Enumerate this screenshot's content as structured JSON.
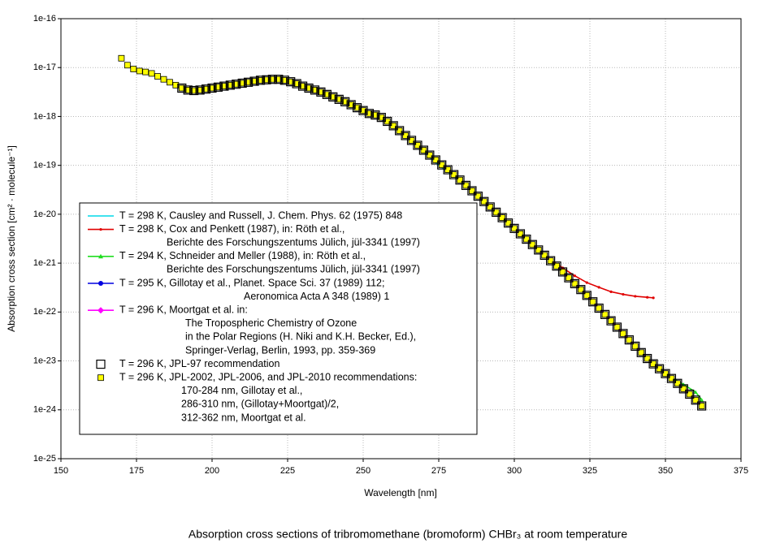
{
  "chart_data": {
    "type": "line",
    "caption": "Absorption cross sections of tribromomethane (bromoform) CHBr₃ at room temperature",
    "xlabel": "Wavelength [nm]",
    "ylabel": "Absorption cross section [cm² · molecule⁻¹]",
    "xlim": [
      150,
      375
    ],
    "xticks": [
      150,
      175,
      200,
      225,
      250,
      275,
      300,
      325,
      350,
      375
    ],
    "ylim": [
      1e-25,
      1e-16
    ],
    "log_y": true,
    "yticks": [
      {
        "value": 1e-25,
        "label": "1e-25"
      },
      {
        "value": 1e-24,
        "label": "1e-24"
      },
      {
        "value": 1e-23,
        "label": "1e-23"
      },
      {
        "value": 1e-22,
        "label": "1e-22"
      },
      {
        "value": 1e-21,
        "label": "1e-21"
      },
      {
        "value": 1e-20,
        "label": "1e-20"
      },
      {
        "value": 1e-19,
        "label": "1e-19"
      },
      {
        "value": 1e-18,
        "label": "1e-18"
      },
      {
        "value": 1e-17,
        "label": "1e-17"
      },
      {
        "value": 1e-16,
        "label": "1e-16"
      }
    ],
    "grid": true,
    "legend": "lower left",
    "series": [
      {
        "name": [
          "T = 298 K, Causley and Russell, J. Chem. Phys. 62 (1975) 848"
        ],
        "color": "#00d8e8",
        "marker": "none",
        "line": true,
        "x": [
          180,
          185,
          190,
          195,
          200,
          205,
          210,
          215,
          220,
          225,
          230,
          235,
          240,
          245,
          250,
          255,
          260,
          265,
          270,
          275,
          280,
          285,
          290,
          295,
          300
        ],
        "values": [
          7.6e-18,
          5.5e-18,
          4e-18,
          3.6e-18,
          3.9e-18,
          4.3e-18,
          4.8e-18,
          5.3e-18,
          5.7e-18,
          5.3e-18,
          4.2e-18,
          3.3e-18,
          2.5e-18,
          1.9e-18,
          1.3e-18,
          1e-18,
          6.5e-19,
          3.6e-19,
          1.9e-19,
          1e-19,
          6e-20,
          3.4e-20,
          1.8e-20,
          9.5e-21,
          5.1e-21
        ]
      },
      {
        "name": [
          "T = 298 K, Cox and Penkett (1987), in: Röth et al.,",
          "Berichte des Forschungszentums Jülich, jül-3341 (1997)"
        ],
        "color": "#e00000",
        "marker": "dot",
        "line": true,
        "x": [
          204,
          208,
          212,
          216,
          220,
          224,
          228,
          232,
          236,
          240,
          244,
          248,
          252,
          256,
          260,
          264,
          268,
          272,
          276,
          280,
          284,
          288,
          292,
          296,
          300,
          304,
          308,
          312,
          316,
          320,
          324,
          328,
          332,
          336,
          340,
          344,
          346
        ],
        "values": [
          4.2e-18,
          4.6e-18,
          5e-18,
          5.5e-18,
          5.75e-18,
          5.5e-18,
          4.7e-18,
          3.8e-18,
          3.2e-18,
          2.5e-18,
          2e-18,
          1.5e-18,
          1.15e-18,
          9.5e-19,
          6.5e-19,
          4.1e-19,
          2.6e-19,
          1.6e-19,
          1e-19,
          6.5e-20,
          3.9e-20,
          2.3e-20,
          1.4e-20,
          8.5e-21,
          5.1e-21,
          3.1e-21,
          1.9e-21,
          1.15e-21,
          8e-22,
          5.5e-22,
          4e-22,
          3.2e-22,
          2.6e-22,
          2.3e-22,
          2.1e-22,
          2e-22,
          1.95e-22
        ]
      },
      {
        "name": [
          "T = 294 K, Schneider and Meller (1988), in: Röth et al.,",
          "Berichte des Forschungszentums Jülich, jül-3341 (1997)"
        ],
        "color": "#22dd22",
        "marker": "triangle",
        "line": true,
        "x": [
          240,
          244,
          248,
          252,
          256,
          260,
          264,
          268,
          272,
          276,
          280,
          284,
          288,
          292,
          296,
          300,
          304,
          308,
          312,
          316,
          320,
          324,
          328,
          332,
          336,
          340,
          344,
          348,
          352,
          356,
          360,
          362
        ],
        "values": [
          2.51e-18,
          2e-18,
          1.51e-18,
          1.15e-18,
          9.55e-19,
          6.46e-19,
          4.07e-19,
          2.57e-19,
          1.62e-19,
          1.02e-19,
          6.46e-20,
          3.89e-20,
          2.34e-20,
          1.41e-20,
          8.51e-21,
          5.13e-21,
          3.09e-21,
          1.86e-21,
          1.12e-21,
          6.61e-22,
          3.8e-22,
          2.19e-22,
          1.2e-22,
          6.61e-23,
          3.63e-23,
          2e-23,
          1.12e-23,
          6.92e-24,
          4.6e-24,
          3.3e-24,
          2.3e-24,
          1.6e-24
        ]
      },
      {
        "name": [
          "T = 295 K, Gillotay et al., Planet. Space Sci. 37 (1989) 112;",
          "Aeronomica Acta A 348 (1989) 1"
        ],
        "color": "#0000e0",
        "marker": "circle",
        "line": true,
        "x": [
          240,
          250,
          260,
          270,
          280,
          290,
          300,
          310
        ],
        "values": [
          2.5e-18,
          1.3e-18,
          6.5e-19,
          2e-19,
          6.5e-20,
          1.8e-20,
          5.1e-21,
          1.45e-21
        ]
      },
      {
        "name": [
          "T = 296 K, Moortgat et al. in:",
          "The Tropospheric Chemistry of Ozone",
          "in the Polar Regions (H. Niki and K.H. Becker, Ed.),",
          "Springer-Verlag, Berlin, 1993, pp. 359-369"
        ],
        "color": "#ff00ff",
        "marker": "diamond",
        "line": true,
        "x": [
          290,
          298,
          306,
          314,
          322,
          330,
          338,
          346,
          354,
          362
        ],
        "values": [
          1.82e-20,
          6.61e-21,
          2.4e-21,
          8.71e-22,
          2.88e-22,
          8.91e-23,
          2.69e-23,
          8.71e-24,
          3.47e-24,
          1.2e-24
        ]
      },
      {
        "name": [
          "T = 296 K, JPL-97 recommendation"
        ],
        "color": "#000000",
        "marker": "open-square",
        "line": false,
        "x": [
          190,
          192,
          194,
          196,
          198,
          200,
          202,
          204,
          206,
          208,
          210,
          212,
          214,
          216,
          218,
          220,
          222,
          224,
          226,
          228,
          230,
          232,
          234,
          236,
          238,
          240,
          242,
          244,
          246,
          248,
          250,
          252,
          254,
          256,
          258,
          260,
          262,
          264,
          266,
          268,
          270,
          272,
          274,
          276,
          278,
          280,
          282,
          284,
          286,
          288,
          290,
          292,
          294,
          296,
          298,
          300,
          302,
          304,
          306,
          308,
          310,
          312,
          314,
          316,
          318,
          320,
          322,
          324,
          326,
          328,
          330,
          332,
          334,
          336,
          338,
          340,
          342,
          344,
          346,
          348,
          350,
          352,
          354,
          356,
          358,
          360,
          362
        ],
        "values": [
          3.8e-18,
          3.47e-18,
          3.39e-18,
          3.47e-18,
          3.63e-18,
          3.8e-18,
          3.98e-18,
          4.17e-18,
          4.37e-18,
          4.57e-18,
          4.79e-18,
          5.01e-18,
          5.25e-18,
          5.5e-18,
          5.62e-18,
          5.75e-18,
          5.75e-18,
          5.5e-18,
          5.13e-18,
          4.68e-18,
          4.17e-18,
          3.8e-18,
          3.47e-18,
          3.16e-18,
          2.82e-18,
          2.51e-18,
          2.24e-18,
          2e-18,
          1.74e-18,
          1.51e-18,
          1.32e-18,
          1.15e-18,
          1.07e-18,
          9.55e-19,
          7.94e-19,
          6.46e-19,
          5.13e-19,
          4.07e-19,
          3.24e-19,
          2.57e-19,
          2.04e-19,
          1.62e-19,
          1.29e-19,
          1.02e-19,
          8.13e-20,
          6.46e-20,
          5.01e-20,
          3.89e-20,
          3.02e-20,
          2.34e-20,
          1.82e-20,
          1.41e-20,
          1.1e-20,
          8.51e-21,
          6.61e-21,
          5.13e-21,
          3.98e-21,
          3.09e-21,
          2.4e-21,
          1.86e-21,
          1.45e-21,
          1.12e-21,
          8.71e-22,
          6.61e-22,
          5.01e-22,
          3.8e-22,
          2.88e-22,
          2.19e-22,
          1.62e-22,
          1.2e-22,
          8.91e-23,
          6.61e-23,
          4.9e-23,
          3.63e-23,
          2.69e-23,
          2e-23,
          1.48e-23,
          1.12e-23,
          8.71e-24,
          6.92e-24,
          5.5e-24,
          4.37e-24,
          3.47e-24,
          2.69e-24,
          2.09e-24,
          1.58e-24,
          1.2e-24
        ]
      },
      {
        "name": [
          "T = 296 K, JPL-2002, JPL-2006, and JPL-2010 recommendations:",
          "170-284 nm, Gillotay et al.,",
          "286-310 nm, (Gillotay+Moortgat)/2,",
          "312-362 nm, Moortgat et al."
        ],
        "color": "#ffff00",
        "marker": "square",
        "line": false,
        "x": [
          170,
          172,
          174,
          176,
          178,
          180,
          182,
          184,
          186,
          188,
          190,
          192,
          194,
          196,
          198,
          200,
          202,
          204,
          206,
          208,
          210,
          212,
          214,
          216,
          218,
          220,
          222,
          224,
          226,
          228,
          230,
          232,
          234,
          236,
          238,
          240,
          242,
          244,
          246,
          248,
          250,
          252,
          254,
          256,
          258,
          260,
          262,
          264,
          266,
          268,
          270,
          272,
          274,
          276,
          278,
          280,
          282,
          284,
          286,
          288,
          290,
          292,
          294,
          296,
          298,
          300,
          302,
          304,
          306,
          308,
          310,
          312,
          314,
          316,
          318,
          320,
          322,
          324,
          326,
          328,
          330,
          332,
          334,
          336,
          338,
          340,
          342,
          344,
          346,
          348,
          350,
          352,
          354,
          356,
          358,
          360,
          362
        ],
        "values": [
          1.55e-17,
          1.12e-17,
          9.33e-18,
          8.51e-18,
          8.13e-18,
          7.59e-18,
          6.61e-18,
          5.75e-18,
          5.01e-18,
          4.37e-18,
          3.8e-18,
          3.47e-18,
          3.39e-18,
          3.47e-18,
          3.63e-18,
          3.8e-18,
          3.98e-18,
          4.17e-18,
          4.37e-18,
          4.57e-18,
          4.79e-18,
          5.01e-18,
          5.25e-18,
          5.5e-18,
          5.62e-18,
          5.75e-18,
          5.75e-18,
          5.5e-18,
          5.13e-18,
          4.68e-18,
          4.17e-18,
          3.8e-18,
          3.47e-18,
          3.16e-18,
          2.82e-18,
          2.51e-18,
          2.24e-18,
          2e-18,
          1.74e-18,
          1.51e-18,
          1.32e-18,
          1.15e-18,
          1.07e-18,
          9.55e-19,
          7.94e-19,
          6.46e-19,
          5.13e-19,
          4.07e-19,
          3.24e-19,
          2.57e-19,
          2.04e-19,
          1.62e-19,
          1.29e-19,
          1.02e-19,
          8.13e-20,
          6.46e-20,
          5.01e-20,
          3.89e-20,
          3.02e-20,
          2.34e-20,
          1.82e-20,
          1.41e-20,
          1.1e-20,
          8.51e-21,
          6.61e-21,
          5.13e-21,
          3.98e-21,
          3.09e-21,
          2.4e-21,
          1.86e-21,
          1.45e-21,
          1.12e-21,
          8.71e-22,
          6.61e-22,
          5.01e-22,
          3.8e-22,
          2.88e-22,
          2.19e-22,
          1.62e-22,
          1.2e-22,
          8.91e-23,
          6.61e-23,
          4.9e-23,
          3.63e-23,
          2.69e-23,
          2e-23,
          1.48e-23,
          1.12e-23,
          8.71e-24,
          6.92e-24,
          5.5e-24,
          4.37e-24,
          3.47e-24,
          2.69e-24,
          2.09e-24,
          1.58e-24,
          1.2e-24
        ]
      }
    ]
  }
}
